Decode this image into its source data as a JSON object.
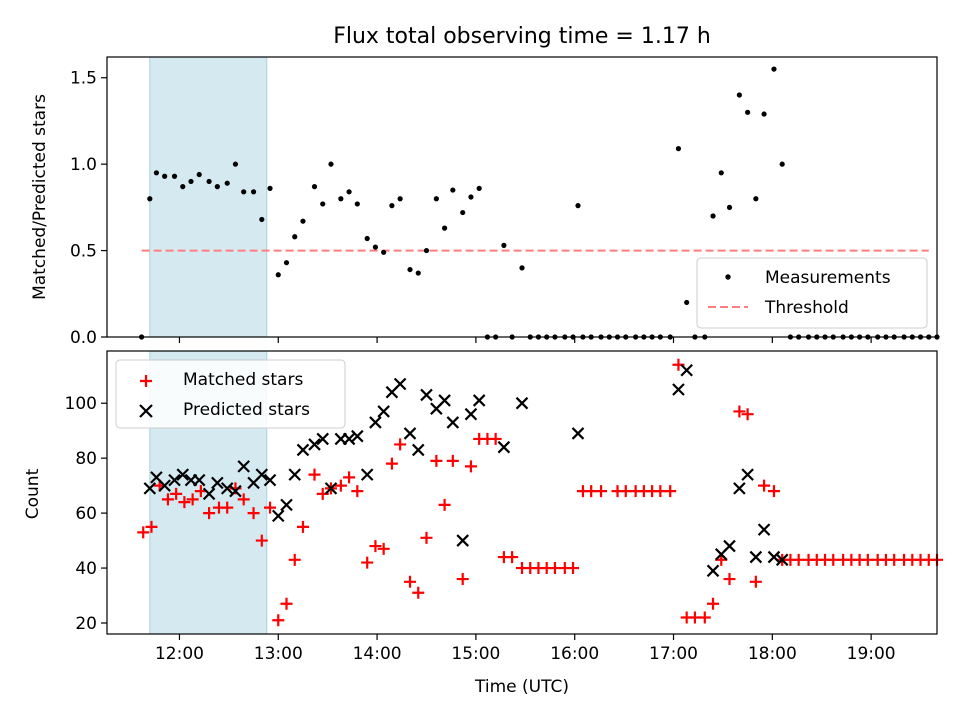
{
  "chart_data": [
    {
      "type": "scatter",
      "title": "Flux total observing time = 1.17 h",
      "ylabel": "Matched/Predicted stars",
      "xlabel": "",
      "xlim": [
        "11:16",
        "19:40"
      ],
      "ylim": [
        0,
        1.62
      ],
      "yticks": [
        0.0,
        0.5,
        1.0,
        1.5
      ],
      "ytick_labels": [
        "0.0",
        "0.5",
        "1.0",
        "1.5"
      ],
      "shaded_interval": {
        "start": "11:42",
        "end": "12:53",
        "color": "#d4e9f0"
      },
      "legend": {
        "position": "lower-right",
        "entries": [
          "Measurements",
          "Threshold"
        ]
      },
      "series": [
        {
          "name": "Measurements",
          "marker": "dot",
          "color": "#000000",
          "points": [
            [
              "11:37",
              0.0
            ],
            [
              "11:42",
              0.8
            ],
            [
              "11:46",
              0.95
            ],
            [
              "11:51",
              0.93
            ],
            [
              "11:57",
              0.93
            ],
            [
              "12:02",
              0.87
            ],
            [
              "12:07",
              0.9
            ],
            [
              "12:12",
              0.94
            ],
            [
              "12:18",
              0.9
            ],
            [
              "12:23",
              0.87
            ],
            [
              "12:29",
              0.89
            ],
            [
              "12:34",
              1.0
            ],
            [
              "12:39",
              0.84
            ],
            [
              "12:45",
              0.84
            ],
            [
              "12:50",
              0.68
            ],
            [
              "12:55",
              0.86
            ],
            [
              "13:00",
              0.36
            ],
            [
              "13:05",
              0.43
            ],
            [
              "13:10",
              0.58
            ],
            [
              "13:15",
              0.67
            ],
            [
              "13:22",
              0.87
            ],
            [
              "13:27",
              0.77
            ],
            [
              "13:32",
              1.0
            ],
            [
              "13:38",
              0.8
            ],
            [
              "13:43",
              0.84
            ],
            [
              "13:48",
              0.77
            ],
            [
              "13:54",
              0.57
            ],
            [
              "13:59",
              0.52
            ],
            [
              "14:04",
              0.49
            ],
            [
              "14:09",
              0.76
            ],
            [
              "14:14",
              0.8
            ],
            [
              "14:20",
              0.39
            ],
            [
              "14:25",
              0.37
            ],
            [
              "14:30",
              0.5
            ],
            [
              "14:36",
              0.8
            ],
            [
              "14:41",
              0.63
            ],
            [
              "14:46",
              0.85
            ],
            [
              "14:52",
              0.72
            ],
            [
              "14:57",
              0.81
            ],
            [
              "15:02",
              0.86
            ],
            [
              "15:07",
              0.0
            ],
            [
              "15:12",
              0.0
            ],
            [
              "15:17",
              0.53
            ],
            [
              "15:22",
              0.0
            ],
            [
              "15:28",
              0.4
            ],
            [
              "15:33",
              0.0
            ],
            [
              "15:38",
              0.0
            ],
            [
              "15:43",
              0.0
            ],
            [
              "15:48",
              0.0
            ],
            [
              "15:54",
              0.0
            ],
            [
              "15:59",
              0.0
            ],
            [
              "16:02",
              0.76
            ],
            [
              "16:05",
              0.0
            ],
            [
              "16:10",
              0.0
            ],
            [
              "16:16",
              0.0
            ],
            [
              "16:21",
              0.0
            ],
            [
              "16:26",
              0.0
            ],
            [
              "16:31",
              0.0
            ],
            [
              "16:37",
              0.0
            ],
            [
              "16:42",
              0.0
            ],
            [
              "16:47",
              0.0
            ],
            [
              "16:52",
              0.0
            ],
            [
              "16:58",
              0.0
            ],
            [
              "17:03",
              1.09
            ],
            [
              "17:08",
              0.2
            ],
            [
              "17:13",
              0.0
            ],
            [
              "17:19",
              0.0
            ],
            [
              "17:24",
              0.7
            ],
            [
              "17:29",
              0.95
            ],
            [
              "17:34",
              0.75
            ],
            [
              "17:40",
              1.4
            ],
            [
              "17:45",
              1.3
            ],
            [
              "17:50",
              0.8
            ],
            [
              "17:55",
              1.29
            ],
            [
              "18:01",
              1.55
            ],
            [
              "18:06",
              1.0
            ],
            [
              "18:11",
              0.0
            ],
            [
              "18:16",
              0.0
            ],
            [
              "18:22",
              0.0
            ],
            [
              "18:27",
              0.0
            ],
            [
              "18:32",
              0.0
            ],
            [
              "18:37",
              0.0
            ],
            [
              "18:43",
              0.0
            ],
            [
              "18:48",
              0.0
            ],
            [
              "18:53",
              0.0
            ],
            [
              "18:58",
              0.0
            ],
            [
              "19:04",
              0.0
            ],
            [
              "19:09",
              0.0
            ],
            [
              "19:14",
              0.0
            ],
            [
              "19:20",
              0.0
            ],
            [
              "19:25",
              0.0
            ],
            [
              "19:30",
              0.0
            ],
            [
              "19:35",
              0.0
            ],
            [
              "19:40",
              0.0
            ]
          ]
        },
        {
          "name": "Threshold",
          "style": "dashed",
          "color": "#ff7f7f",
          "points": [
            [
              "11:37",
              0.5
            ],
            [
              "19:35",
              0.5
            ]
          ]
        }
      ]
    },
    {
      "type": "scatter",
      "title": "",
      "ylabel": "Count",
      "xlabel": "Time (UTC)",
      "xlim": [
        "11:16",
        "19:40"
      ],
      "ylim": [
        16,
        119
      ],
      "yticks": [
        20,
        40,
        60,
        80,
        100
      ],
      "ytick_labels": [
        "20",
        "40",
        "60",
        "80",
        "100"
      ],
      "xticks": [
        "12:00",
        "13:00",
        "14:00",
        "15:00",
        "16:00",
        "17:00",
        "18:00",
        "19:00"
      ],
      "shaded_interval": {
        "start": "11:42",
        "end": "12:53",
        "color": "#d4e9f0"
      },
      "legend": {
        "position": "top-left",
        "entries": [
          "Matched stars",
          "Predicted stars"
        ]
      },
      "series": [
        {
          "name": "Matched stars",
          "marker": "plus",
          "color": "#ff0000",
          "points": [
            [
              "11:38",
              53
            ],
            [
              "11:43",
              55
            ],
            [
              "11:48",
              70
            ],
            [
              "11:53",
              65
            ],
            [
              "11:58",
              67
            ],
            [
              "12:03",
              64
            ],
            [
              "12:08",
              65
            ],
            [
              "12:13",
              68
            ],
            [
              "12:18",
              60
            ],
            [
              "12:24",
              62
            ],
            [
              "12:29",
              62
            ],
            [
              "12:34",
              69
            ],
            [
              "12:39",
              65
            ],
            [
              "12:45",
              60
            ],
            [
              "12:50",
              50
            ],
            [
              "12:55",
              62
            ],
            [
              "13:00",
              21
            ],
            [
              "13:05",
              27
            ],
            [
              "13:10",
              43
            ],
            [
              "13:15",
              55
            ],
            [
              "13:22",
              74
            ],
            [
              "13:27",
              67
            ],
            [
              "13:32",
              69
            ],
            [
              "13:38",
              70
            ],
            [
              "13:43",
              73
            ],
            [
              "13:48",
              68
            ],
            [
              "13:54",
              42
            ],
            [
              "13:59",
              48
            ],
            [
              "14:04",
              47
            ],
            [
              "14:09",
              78
            ],
            [
              "14:14",
              85
            ],
            [
              "14:20",
              35
            ],
            [
              "14:25",
              31
            ],
            [
              "14:30",
              51
            ],
            [
              "14:36",
              79
            ],
            [
              "14:41",
              63
            ],
            [
              "14:46",
              79
            ],
            [
              "14:52",
              36
            ],
            [
              "14:57",
              77
            ],
            [
              "15:02",
              87
            ],
            [
              "15:07",
              87
            ],
            [
              "15:12",
              87
            ],
            [
              "15:17",
              44
            ],
            [
              "15:22",
              44
            ],
            [
              "15:28",
              40
            ],
            [
              "15:33",
              40
            ],
            [
              "15:38",
              40
            ],
            [
              "15:43",
              40
            ],
            [
              "15:48",
              40
            ],
            [
              "15:54",
              40
            ],
            [
              "15:59",
              40
            ],
            [
              "16:05",
              68
            ],
            [
              "16:10",
              68
            ],
            [
              "16:16",
              68
            ],
            [
              "16:26",
              68
            ],
            [
              "16:31",
              68
            ],
            [
              "16:37",
              68
            ],
            [
              "16:42",
              68
            ],
            [
              "16:47",
              68
            ],
            [
              "16:52",
              68
            ],
            [
              "16:58",
              68
            ],
            [
              "17:03",
              114
            ],
            [
              "17:08",
              22
            ],
            [
              "17:13",
              22
            ],
            [
              "17:19",
              22
            ],
            [
              "17:24",
              27
            ],
            [
              "17:29",
              43
            ],
            [
              "17:34",
              36
            ],
            [
              "17:40",
              97
            ],
            [
              "17:45",
              96
            ],
            [
              "17:50",
              35
            ],
            [
              "17:55",
              70
            ],
            [
              "18:01",
              68
            ],
            [
              "18:06",
              43
            ],
            [
              "18:11",
              43
            ],
            [
              "18:16",
              43
            ],
            [
              "18:22",
              43
            ],
            [
              "18:27",
              43
            ],
            [
              "18:32",
              43
            ],
            [
              "18:37",
              43
            ],
            [
              "18:43",
              43
            ],
            [
              "18:48",
              43
            ],
            [
              "18:53",
              43
            ],
            [
              "18:58",
              43
            ],
            [
              "19:04",
              43
            ],
            [
              "19:09",
              43
            ],
            [
              "19:14",
              43
            ],
            [
              "19:20",
              43
            ],
            [
              "19:25",
              43
            ],
            [
              "19:30",
              43
            ],
            [
              "19:35",
              43
            ],
            [
              "19:40",
              43
            ]
          ]
        },
        {
          "name": "Predicted stars",
          "marker": "x",
          "color": "#000000",
          "points": [
            [
              "11:42",
              69
            ],
            [
              "11:46",
              73
            ],
            [
              "11:51",
              70
            ],
            [
              "11:57",
              72
            ],
            [
              "12:02",
              74
            ],
            [
              "12:07",
              72
            ],
            [
              "12:12",
              72
            ],
            [
              "12:18",
              67
            ],
            [
              "12:23",
              71
            ],
            [
              "12:29",
              69
            ],
            [
              "12:34",
              68
            ],
            [
              "12:39",
              77
            ],
            [
              "12:45",
              71
            ],
            [
              "12:50",
              74
            ],
            [
              "12:55",
              72
            ],
            [
              "13:00",
              59
            ],
            [
              "13:05",
              63
            ],
            [
              "13:10",
              74
            ],
            [
              "13:15",
              83
            ],
            [
              "13:22",
              85
            ],
            [
              "13:27",
              87
            ],
            [
              "13:32",
              69
            ],
            [
              "13:38",
              87
            ],
            [
              "13:43",
              87
            ],
            [
              "13:48",
              88
            ],
            [
              "13:54",
              74
            ],
            [
              "13:59",
              93
            ],
            [
              "14:04",
              97
            ],
            [
              "14:09",
              104
            ],
            [
              "14:14",
              107
            ],
            [
              "14:20",
              89
            ],
            [
              "14:25",
              83
            ],
            [
              "14:30",
              103
            ],
            [
              "14:36",
              98
            ],
            [
              "14:41",
              101
            ],
            [
              "14:46",
              93
            ],
            [
              "14:52",
              50
            ],
            [
              "14:57",
              96
            ],
            [
              "15:02",
              101
            ],
            [
              "15:17",
              84
            ],
            [
              "15:28",
              100
            ],
            [
              "16:02",
              89
            ],
            [
              "17:03",
              105
            ],
            [
              "17:08",
              112
            ],
            [
              "17:24",
              39
            ],
            [
              "17:29",
              45
            ],
            [
              "17:34",
              48
            ],
            [
              "17:40",
              69
            ],
            [
              "17:45",
              74
            ],
            [
              "17:50",
              44
            ],
            [
              "17:55",
              54
            ],
            [
              "18:01",
              44
            ],
            [
              "18:06",
              43
            ]
          ]
        }
      ]
    }
  ]
}
